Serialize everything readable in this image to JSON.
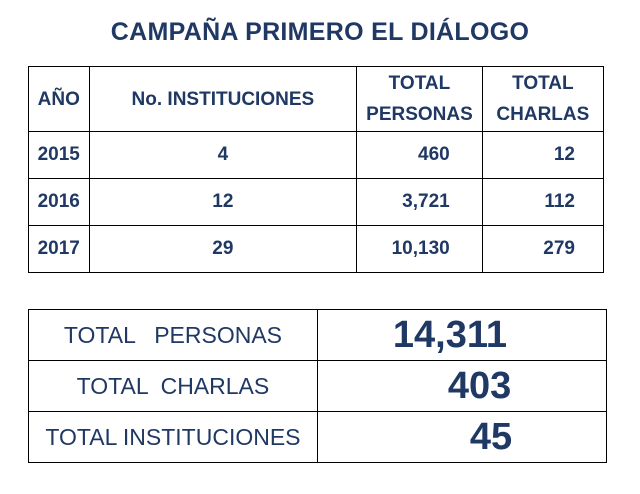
{
  "title": "CAMPAÑA PRIMERO EL DIÁLOGO",
  "table": {
    "headers": {
      "year": "AÑO",
      "institutions": "No. INSTITUCIONES",
      "persons_line1": "TOTAL",
      "persons_line2": "PERSONAS",
      "talks_line1": "TOTAL",
      "talks_line2": "CHARLAS"
    },
    "rows": [
      {
        "year": "2015",
        "institutions": "4",
        "persons": "460",
        "talks": "12"
      },
      {
        "year": "2016",
        "institutions": "12",
        "persons": "3,721",
        "talks": "112"
      },
      {
        "year": "2017",
        "institutions": "29",
        "persons": "10,130",
        "talks": "279"
      }
    ]
  },
  "totals": [
    {
      "label": "TOTAL   PERSONAS",
      "value": "14,311"
    },
    {
      "label": "TOTAL  CHARLAS",
      "value": "403"
    },
    {
      "label": "TOTAL INSTITUCIONES",
      "value": "45"
    }
  ],
  "colors": {
    "text": "#1f3864",
    "border": "#000000",
    "background": "#ffffff"
  }
}
